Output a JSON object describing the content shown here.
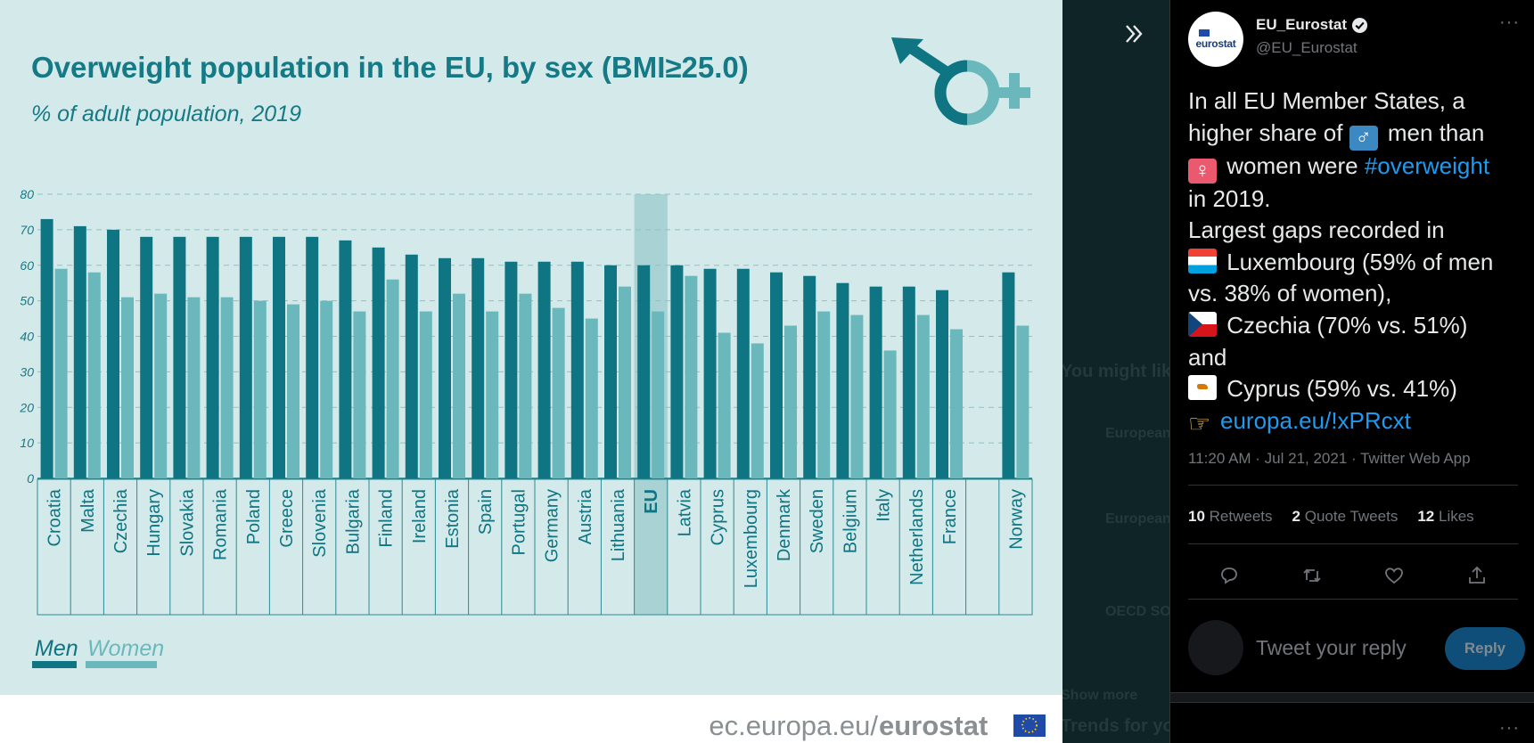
{
  "viewer": {
    "expand_icon": "double-chevron-right-icon",
    "background_ghost_text": [
      "You might like",
      "European",
      "European",
      "OECD SO",
      "Show more",
      "Trends for you"
    ]
  },
  "infographic": {
    "title": "Overweight population in the EU, by sex (BMI≥25.0)",
    "subtitle": "% of adult population, 2019",
    "legend": {
      "men": "Men",
      "women": "Women"
    },
    "footer_url": "ec.europa.eu/",
    "footer_brand": "eurostat",
    "colors": {
      "background": "#d3e9ea",
      "men": "#0f7582",
      "women": "#6bb8bc",
      "text": "#157a85",
      "highlight": "#a9d2d4"
    }
  },
  "chart_data": {
    "type": "bar",
    "title": "Overweight population in the EU, by sex (BMI≥25.0)",
    "subtitle": "% of adult population, 2019",
    "ylim": [
      0,
      80
    ],
    "yticks": [
      0,
      10,
      20,
      30,
      40,
      50,
      60,
      70,
      80
    ],
    "grid": true,
    "legend_position": "bottom-left",
    "highlight_category": "EU",
    "categories": [
      "Croatia",
      "Malta",
      "Czechia",
      "Hungary",
      "Slovakia",
      "Romania",
      "Poland",
      "Greece",
      "Slovenia",
      "Bulgaria",
      "Finland",
      "Ireland",
      "Estonia",
      "Spain",
      "Portugal",
      "Germany",
      "Austria",
      "Lithuania",
      "EU",
      "Latvia",
      "Cyprus",
      "Luxembourg",
      "Denmark",
      "Sweden",
      "Belgium",
      "Italy",
      "Netherlands",
      "France",
      "",
      "Norway"
    ],
    "series": [
      {
        "name": "Men",
        "values": [
          73,
          71,
          70,
          68,
          68,
          68,
          68,
          68,
          68,
          67,
          65,
          63,
          62,
          62,
          61,
          61,
          61,
          60,
          60,
          60,
          59,
          59,
          58,
          57,
          55,
          54,
          54,
          53,
          null,
          58
        ]
      },
      {
        "name": "Women",
        "values": [
          59,
          58,
          51,
          52,
          51,
          51,
          50,
          49,
          50,
          47,
          56,
          47,
          52,
          47,
          52,
          48,
          45,
          54,
          47,
          57,
          41,
          38,
          43,
          47,
          46,
          36,
          46,
          42,
          null,
          43
        ]
      }
    ]
  },
  "tweet": {
    "name": "EU_Eurostat",
    "handle": "@EU_Eurostat",
    "avatar_text": "eurostat",
    "verified_icon": "verified-badge-icon",
    "lines": {
      "l1": "In all EU Member States, a",
      "l2a": "higher share of ",
      "l2b": " men than",
      "l3a": " women were ",
      "l3b": "#overweight",
      "l4": "in 2019.",
      "l5": "Largest gaps recorded in",
      "l6": " Luxembourg (59% of men",
      "l7": "vs. 38% of women),",
      "l8": " Czechia (70% vs. 51%)",
      "l9": "and",
      "l10": " Cyprus (59% vs. 41%)",
      "l11": "europa.eu/!xPRcxt"
    },
    "timestamp": "11:20 AM · Jul 21, 2021 · Twitter Web App",
    "stats": {
      "retweets": "10",
      "retweets_label": "Retweets",
      "quotes": "2",
      "quotes_label": "Quote Tweets",
      "likes": "12",
      "likes_label": "Likes"
    },
    "reply_placeholder": "Tweet your reply",
    "reply_button": "Reply"
  }
}
